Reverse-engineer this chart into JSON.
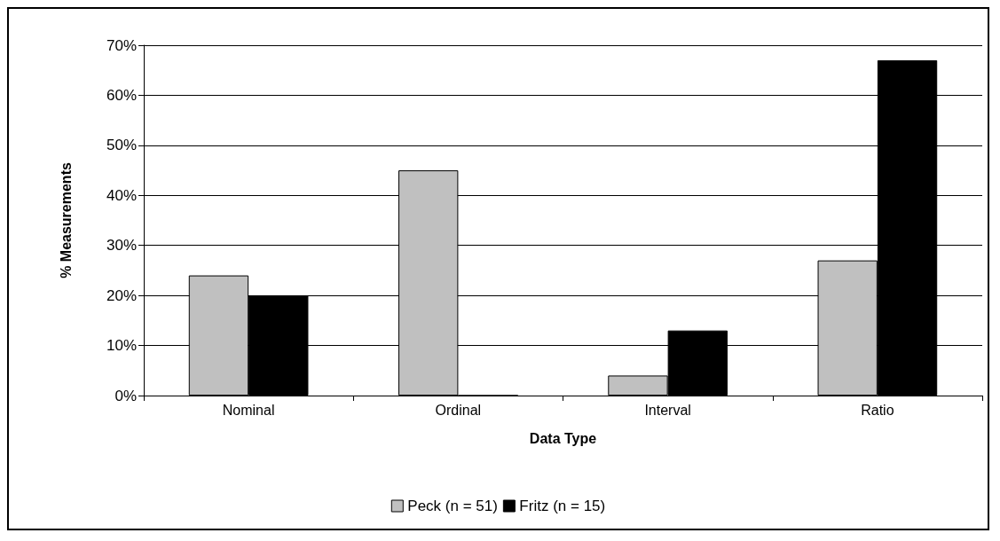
{
  "chart_data": {
    "type": "bar",
    "xlabel": "Data Type",
    "ylabel": "% Measurements",
    "categories": [
      "Nominal",
      "Ordinal",
      "Interval",
      "Ratio"
    ],
    "series": [
      {
        "name": "Peck (n = 51)",
        "color": "#c0c0c0",
        "values": [
          24,
          45,
          4,
          27
        ]
      },
      {
        "name": "Fritz (n = 15)",
        "color": "#000000",
        "values": [
          20,
          0,
          13,
          67
        ]
      }
    ],
    "ylim": [
      0,
      70
    ],
    "yticks": [
      {
        "value": 0,
        "label": "0%"
      },
      {
        "value": 10,
        "label": "10%"
      },
      {
        "value": 20,
        "label": "20%"
      },
      {
        "value": 30,
        "label": "30%"
      },
      {
        "value": 40,
        "label": "40%"
      },
      {
        "value": 50,
        "label": "50%"
      },
      {
        "value": 60,
        "label": "60%"
      },
      {
        "value": 70,
        "label": "70%"
      }
    ],
    "grid": "y",
    "legend": "bottom"
  }
}
